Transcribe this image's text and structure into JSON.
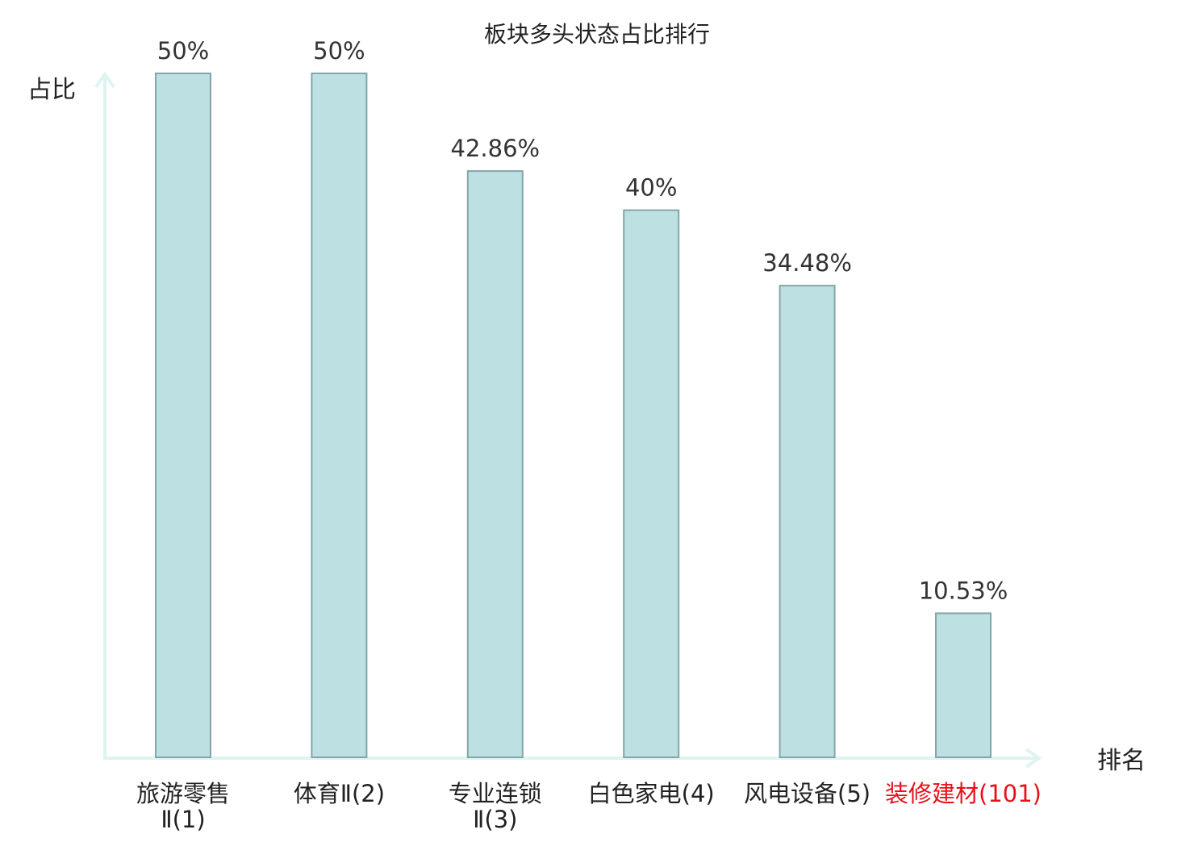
{
  "chart_data": {
    "type": "bar",
    "title": "板块多头状态占比排行",
    "xlabel": "排名",
    "ylabel": "占比",
    "categories": [
      {
        "line1": "旅游零售",
        "line2": "Ⅱ(1)"
      },
      {
        "line1": "体育Ⅱ(2)",
        "line2": ""
      },
      {
        "line1": "专业连锁",
        "line2": "Ⅱ(3)"
      },
      {
        "line1": "白色家电(4)",
        "line2": ""
      },
      {
        "line1": "风电设备(5)",
        "line2": ""
      },
      {
        "line1": "装修建材(101)",
        "line2": ""
      }
    ],
    "values": [
      50,
      50,
      42.86,
      40,
      34.48,
      10.53
    ],
    "value_labels": [
      "50%",
      "50%",
      "42.86%",
      "40%",
      "34.48%",
      "10.53%"
    ],
    "highlight": [
      false,
      false,
      false,
      false,
      false,
      true
    ],
    "ylim": [
      0,
      50
    ],
    "grid": false,
    "colors": {
      "bar_fill": "#bde0e3",
      "bar_stroke": "#86a5a8",
      "axis": "#dff3f1",
      "text": "#222222",
      "value_text": "#333333",
      "highlight_text": "#e8111a"
    }
  }
}
